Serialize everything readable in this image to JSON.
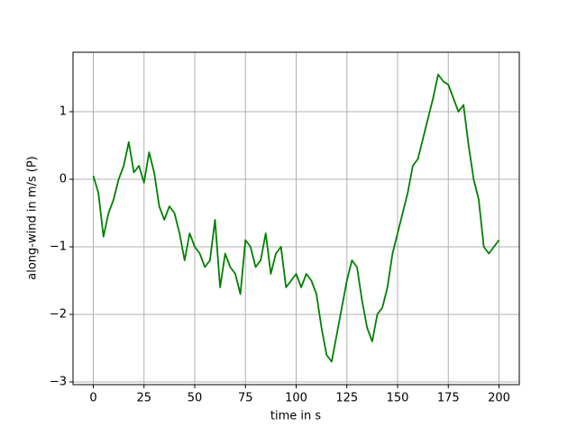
{
  "chart_data": {
    "type": "line",
    "x_label": "time in s",
    "y_label": "along-wind in m/s (P)",
    "x": [
      0,
      2.5,
      5,
      7.5,
      10,
      12.5,
      15,
      17.5,
      20,
      22.5,
      25,
      27.5,
      30,
      32.5,
      35,
      37.5,
      40,
      42.5,
      45,
      47.5,
      50,
      52.5,
      55,
      57.5,
      60,
      62.5,
      65,
      67.5,
      70,
      72.5,
      75,
      77.5,
      80,
      82.5,
      85,
      87.5,
      90,
      92.5,
      95,
      97.5,
      100,
      102.5,
      105,
      107.5,
      110,
      112.5,
      115,
      117.5,
      120,
      122.5,
      125,
      127.5,
      130,
      132.5,
      135,
      137.5,
      140,
      142.5,
      145,
      147.5,
      150,
      152.5,
      155,
      157.5,
      160,
      162.5,
      165,
      167.5,
      170,
      172.5,
      175,
      177.5,
      180,
      182.5,
      185,
      187.5,
      190,
      192.5,
      195,
      197.5,
      200
    ],
    "series": [
      {
        "name": "along-wind",
        "color": "#008000",
        "values": [
          0.05,
          -0.2,
          -0.85,
          -0.5,
          -0.3,
          0.0,
          0.2,
          0.55,
          0.1,
          0.2,
          -0.05,
          0.4,
          0.1,
          -0.4,
          -0.6,
          -0.4,
          -0.5,
          -0.8,
          -1.2,
          -0.8,
          -1.0,
          -1.1,
          -1.3,
          -1.2,
          -0.6,
          -1.6,
          -1.1,
          -1.3,
          -1.4,
          -1.7,
          -0.9,
          -1.0,
          -1.3,
          -1.2,
          -0.8,
          -1.4,
          -1.1,
          -1.0,
          -1.6,
          -1.5,
          -1.4,
          -1.6,
          -1.4,
          -1.5,
          -1.7,
          -2.2,
          -2.6,
          -2.7,
          -2.3,
          -1.9,
          -1.5,
          -1.2,
          -1.3,
          -1.8,
          -2.2,
          -2.4,
          -2.0,
          -1.9,
          -1.6,
          -1.1,
          -0.8,
          -0.5,
          -0.2,
          0.2,
          0.3,
          0.6,
          0.9,
          1.2,
          1.55,
          1.45,
          1.4,
          1.2,
          1.0,
          1.1,
          0.5,
          0.0,
          -0.3,
          -1.0,
          -1.1,
          -1.0,
          -0.9
        ]
      }
    ],
    "xlim": [
      -10,
      210
    ],
    "ylim": [
      -3.04,
      1.88
    ],
    "xticks": [
      0,
      25,
      50,
      75,
      100,
      125,
      150,
      175,
      200
    ],
    "yticks": [
      {
        "value": -3,
        "label": "−3"
      },
      {
        "value": -2,
        "label": "−2"
      },
      {
        "value": -1,
        "label": "−1"
      },
      0,
      1
    ],
    "grid": true
  }
}
